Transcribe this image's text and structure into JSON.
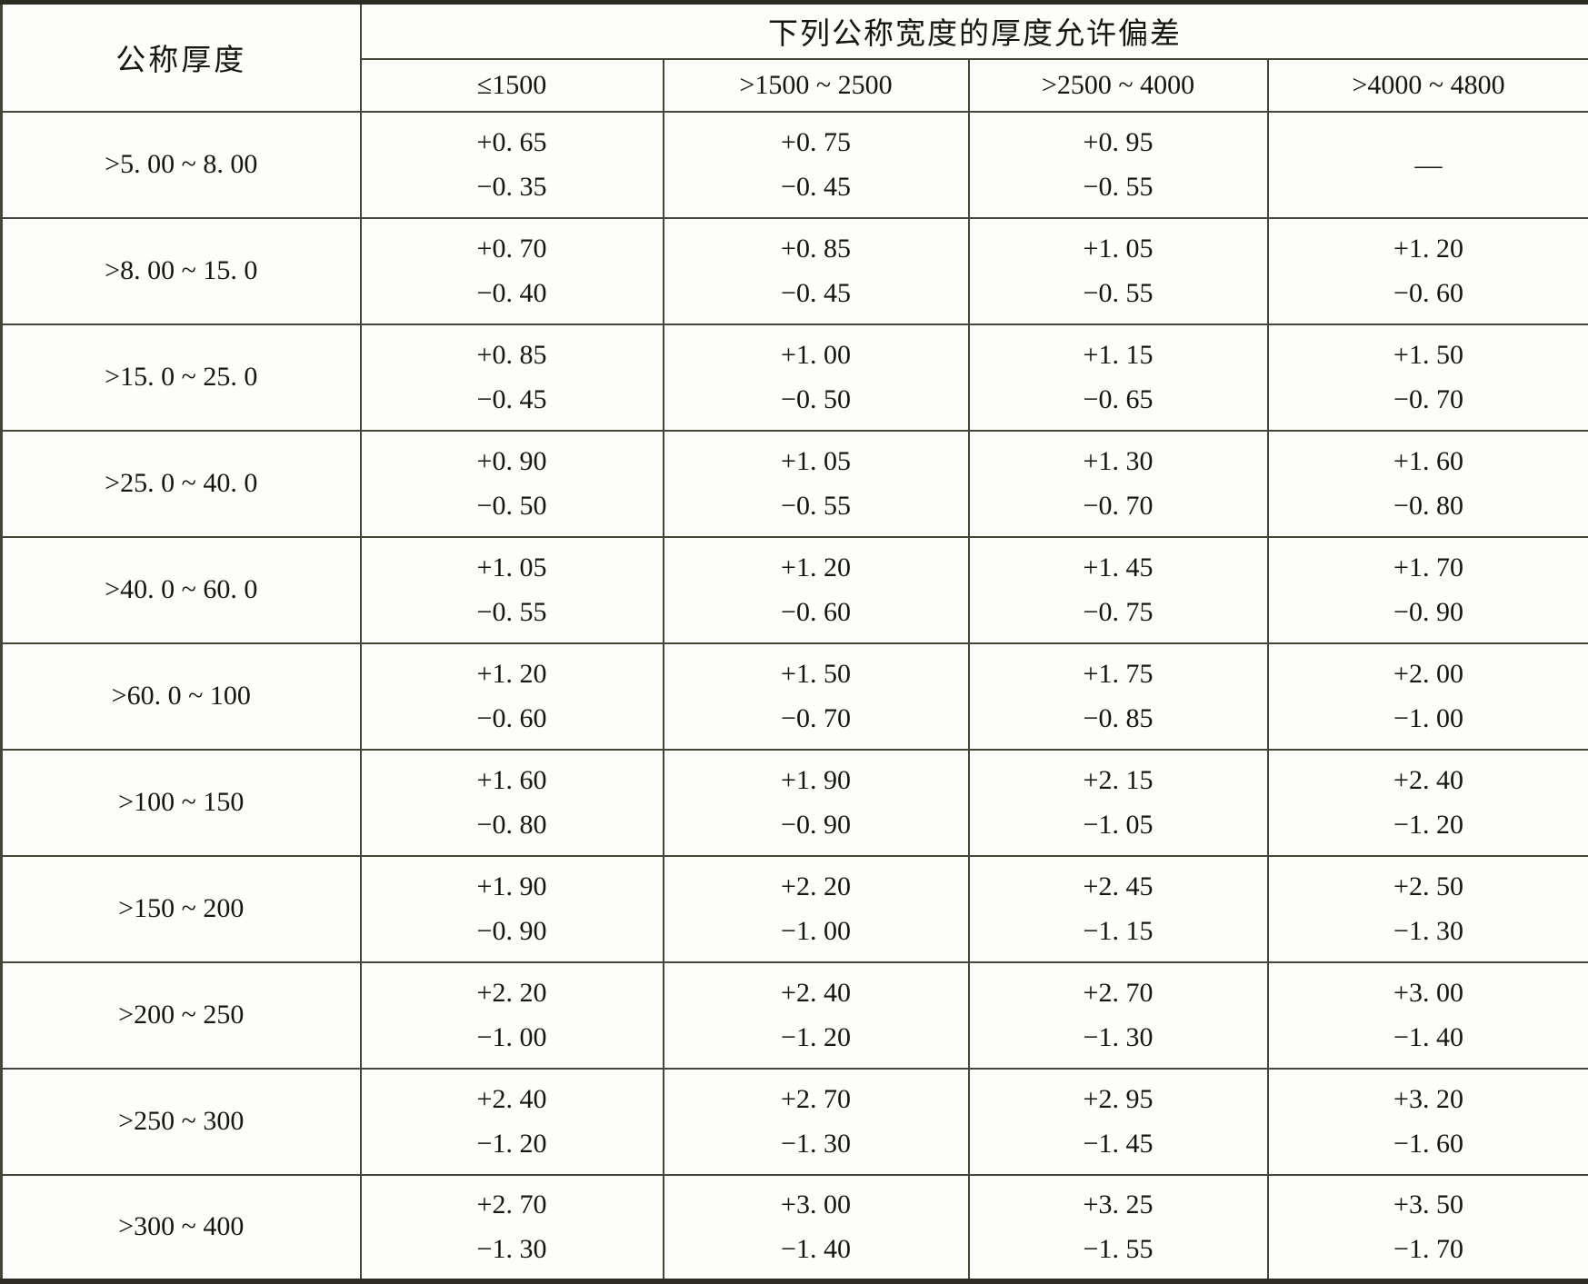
{
  "colors": {
    "background": "#fdfdf9",
    "grid_line": "#45453a",
    "outer_border": "#2c2c23",
    "text": "#16160f"
  },
  "table": {
    "corner_header": "公称厚度",
    "span_header": "下列公称宽度的厚度允许偏差",
    "width_headers": [
      "≤1500",
      ">1500 ~ 2500",
      ">2500 ~ 4000",
      ">4000 ~ 4800"
    ],
    "no_value_dash": "—",
    "rows": [
      {
        "thickness": ">5. 00 ~ 8. 00",
        "cells": [
          {
            "plus": "+0. 65",
            "minus": "−0. 35"
          },
          {
            "plus": "+0. 75",
            "minus": "−0. 45"
          },
          {
            "plus": "+0. 95",
            "minus": "−0. 55"
          },
          {
            "dash": "—"
          }
        ]
      },
      {
        "thickness": ">8. 00 ~ 15. 0",
        "cells": [
          {
            "plus": "+0. 70",
            "minus": "−0. 40"
          },
          {
            "plus": "+0. 85",
            "minus": "−0. 45"
          },
          {
            "plus": "+1. 05",
            "minus": "−0. 55"
          },
          {
            "plus": "+1. 20",
            "minus": "−0. 60"
          }
        ]
      },
      {
        "thickness": ">15. 0 ~ 25. 0",
        "cells": [
          {
            "plus": "+0. 85",
            "minus": "−0. 45"
          },
          {
            "plus": "+1. 00",
            "minus": "−0. 50"
          },
          {
            "plus": "+1. 15",
            "minus": "−0. 65"
          },
          {
            "plus": "+1. 50",
            "minus": "−0. 70"
          }
        ]
      },
      {
        "thickness": ">25. 0 ~ 40. 0",
        "cells": [
          {
            "plus": "+0. 90",
            "minus": "−0. 50"
          },
          {
            "plus": "+1. 05",
            "minus": "−0. 55"
          },
          {
            "plus": "+1. 30",
            "minus": "−0. 70"
          },
          {
            "plus": "+1. 60",
            "minus": "−0. 80"
          }
        ]
      },
      {
        "thickness": ">40. 0 ~ 60. 0",
        "cells": [
          {
            "plus": "+1. 05",
            "minus": "−0. 55"
          },
          {
            "plus": "+1. 20",
            "minus": "−0. 60"
          },
          {
            "plus": "+1. 45",
            "minus": "−0. 75"
          },
          {
            "plus": "+1. 70",
            "minus": "−0. 90"
          }
        ]
      },
      {
        "thickness": ">60. 0 ~ 100",
        "cells": [
          {
            "plus": "+1. 20",
            "minus": "−0. 60"
          },
          {
            "plus": "+1. 50",
            "minus": "−0. 70"
          },
          {
            "plus": "+1. 75",
            "minus": "−0. 85"
          },
          {
            "plus": "+2. 00",
            "minus": "−1. 00"
          }
        ]
      },
      {
        "thickness": ">100 ~ 150",
        "cells": [
          {
            "plus": "+1. 60",
            "minus": "−0. 80"
          },
          {
            "plus": "+1. 90",
            "minus": "−0. 90"
          },
          {
            "plus": "+2. 15",
            "minus": "−1. 05"
          },
          {
            "plus": "+2. 40",
            "minus": "−1. 20"
          }
        ]
      },
      {
        "thickness": ">150 ~ 200",
        "cells": [
          {
            "plus": "+1. 90",
            "minus": "−0. 90"
          },
          {
            "plus": "+2. 20",
            "minus": "−1. 00"
          },
          {
            "plus": "+2. 45",
            "minus": "−1. 15"
          },
          {
            "plus": "+2. 50",
            "minus": "−1. 30"
          }
        ]
      },
      {
        "thickness": ">200 ~ 250",
        "cells": [
          {
            "plus": "+2. 20",
            "minus": "−1. 00"
          },
          {
            "plus": "+2. 40",
            "minus": "−1. 20"
          },
          {
            "plus": "+2. 70",
            "minus": "−1. 30"
          },
          {
            "plus": "+3. 00",
            "minus": "−1. 40"
          }
        ]
      },
      {
        "thickness": ">250 ~ 300",
        "cells": [
          {
            "plus": "+2. 40",
            "minus": "−1. 20"
          },
          {
            "plus": "+2. 70",
            "minus": "−1. 30"
          },
          {
            "plus": "+2. 95",
            "minus": "−1. 45"
          },
          {
            "plus": "+3. 20",
            "minus": "−1. 60"
          }
        ]
      },
      {
        "thickness": ">300 ~ 400",
        "cells": [
          {
            "plus": "+2. 70",
            "minus": "−1. 30"
          },
          {
            "plus": "+3. 00",
            "minus": "−1. 40"
          },
          {
            "plus": "+3. 25",
            "minus": "−1. 55"
          },
          {
            "plus": "+3. 50",
            "minus": "−1. 70"
          }
        ]
      }
    ]
  }
}
